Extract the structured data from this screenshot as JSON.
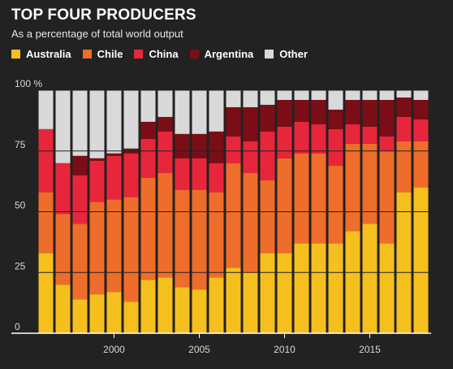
{
  "header": {
    "title": "TOP FOUR PRODUCERS",
    "subtitle": "As a percentage of total world output"
  },
  "colors": {
    "Australia": "#f5c01e",
    "Chile": "#ee6d2a",
    "China": "#e8263b",
    "Argentina": "#7b0d16",
    "Other": "#d9d9d9",
    "background": "#222222"
  },
  "chart_data": {
    "type": "bar",
    "stacked": true,
    "title": "TOP FOUR PRODUCERS",
    "subtitle": "As a percentage of total world output",
    "legend_position": "top-left",
    "ylim": [
      0,
      100
    ],
    "y_ticks": [
      "0",
      "25",
      "50",
      "75",
      "100 %"
    ],
    "x_ticks": [
      "2000",
      "2005",
      "2010",
      "2015"
    ],
    "categories": [
      1996,
      1997,
      1998,
      1999,
      2000,
      2001,
      2002,
      2003,
      2004,
      2005,
      2006,
      2007,
      2008,
      2009,
      2010,
      2011,
      2012,
      2013,
      2014,
      2015,
      2016,
      2017,
      2018
    ],
    "series": [
      {
        "name": "Australia",
        "values": [
          33,
          20,
          14,
          16,
          17,
          13,
          22,
          23,
          19,
          18,
          23,
          27,
          25,
          33,
          33,
          37,
          37,
          37,
          42,
          45,
          37,
          58,
          60
        ]
      },
      {
        "name": "Chile",
        "values": [
          25,
          29,
          31,
          38,
          38,
          43,
          42,
          43,
          40,
          41,
          35,
          43,
          41,
          30,
          39,
          37,
          37,
          32,
          36,
          33,
          38,
          21,
          19
        ]
      },
      {
        "name": "China",
        "values": [
          26,
          21,
          20,
          17,
          18,
          18,
          16,
          17,
          13,
          13,
          12,
          11,
          13,
          20,
          13,
          13,
          12,
          15,
          8,
          7,
          6,
          10,
          9
        ]
      },
      {
        "name": "Argentina",
        "values": [
          0,
          0,
          8,
          1,
          1,
          2,
          7,
          6,
          10,
          10,
          13,
          12,
          14,
          11,
          11,
          9,
          10,
          8,
          10,
          11,
          15,
          8,
          8
        ]
      },
      {
        "name": "Other",
        "values": [
          16,
          30,
          27,
          28,
          26,
          24,
          13,
          11,
          18,
          18,
          17,
          7,
          7,
          6,
          4,
          4,
          4,
          8,
          4,
          4,
          4,
          3,
          4
        ]
      }
    ]
  }
}
